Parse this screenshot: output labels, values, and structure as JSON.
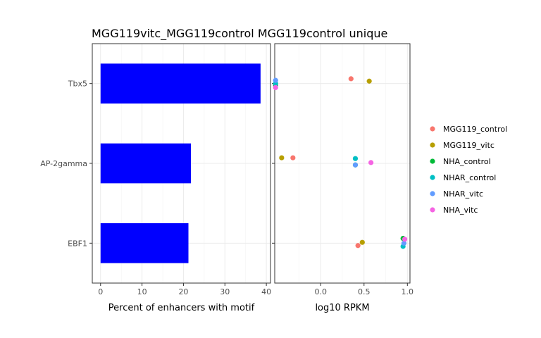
{
  "title": "MGG119vitc_MGG119control MGG119control unique",
  "chart_data": [
    {
      "type": "bar",
      "orientation": "horizontal",
      "categories": [
        "Tbx5",
        "AP-2gamma",
        "EBF1"
      ],
      "values": [
        38.6,
        21.8,
        21.2
      ],
      "xlabel": "Percent of enhancers with motif",
      "xlim": [
        -2,
        41
      ],
      "xticks": [
        0,
        10,
        20,
        30,
        40
      ],
      "bar_color": "#0000ff",
      "grid": true
    },
    {
      "type": "scatter",
      "categories": [
        "Tbx5",
        "AP-2gamma",
        "EBF1"
      ],
      "xlabel": "log10 RPKM",
      "xlim": [
        -0.53,
        1.03
      ],
      "xticks": [
        0.0,
        0.5,
        1.0
      ],
      "xtick_labels": [
        "0.0",
        "0.5",
        "1.0"
      ],
      "grid": true,
      "legend_position": "right",
      "series": [
        {
          "name": "MGG119_control",
          "color": "#F8766D",
          "values": [
            0.35,
            -0.32,
            0.43
          ]
        },
        {
          "name": "MGG119_vitc",
          "color": "#B79F00",
          "values": [
            0.56,
            -0.45,
            0.48
          ]
        },
        {
          "name": "NHA_control",
          "color": "#00BA38",
          "values": [
            -0.52,
            0.4,
            0.95
          ]
        },
        {
          "name": "NHAR_control",
          "color": "#00BFC4",
          "values": [
            -0.52,
            0.4,
            0.95
          ]
        },
        {
          "name": "NHAR_vitc",
          "color": "#619CFF",
          "values": [
            -0.52,
            0.4,
            0.96
          ]
        },
        {
          "name": "NHA_vitc",
          "color": "#F564E3",
          "values": [
            -0.52,
            0.58,
            0.97
          ]
        }
      ],
      "jitter": [
        [
          -0.06,
          -0.03,
          0.02,
          0.0,
          -0.04,
          0.05
        ],
        [
          -0.07,
          -0.07,
          0.02,
          -0.06,
          0.02,
          -0.01
        ],
        [
          0.03,
          -0.01,
          -0.06,
          0.04,
          0.0,
          -0.05
        ]
      ]
    }
  ]
}
